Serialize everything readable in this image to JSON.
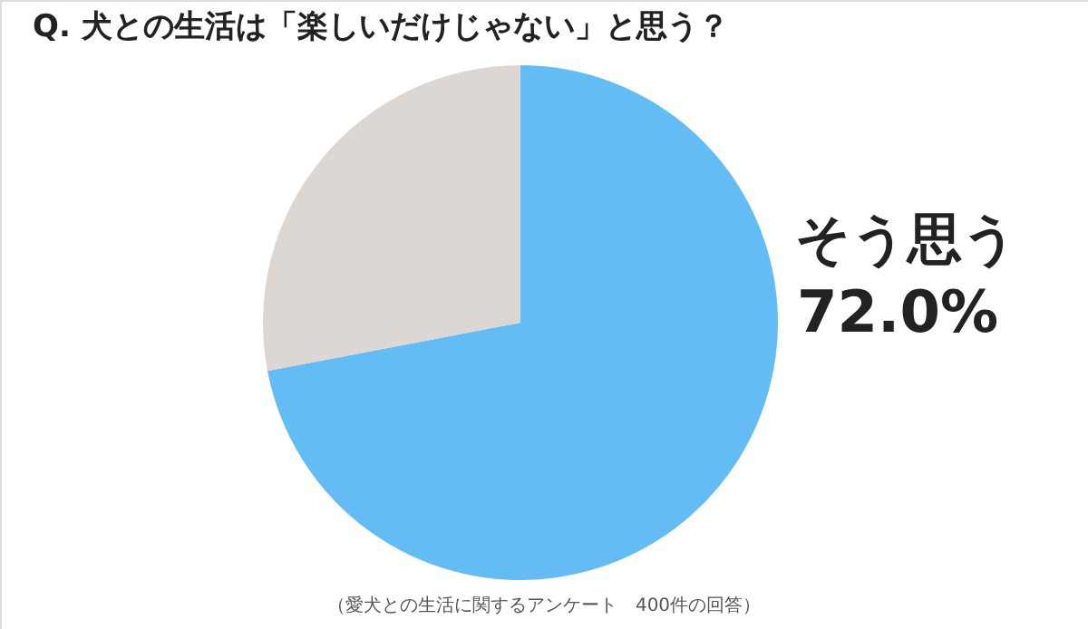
{
  "chart_data": {
    "type": "pie",
    "title": "Q.  犬との生活は「楽しいだけじゃない」と思う？",
    "categories": [
      "そう思う",
      null
    ],
    "values": [
      72.0,
      28.0
    ],
    "colors": [
      "#64bcf5",
      "#dcd7d2"
    ],
    "value_labels": [
      "72.0%",
      null
    ],
    "annotations": [
      "（愛犬との生活に関するアンケート　400件の回答）"
    ]
  }
}
